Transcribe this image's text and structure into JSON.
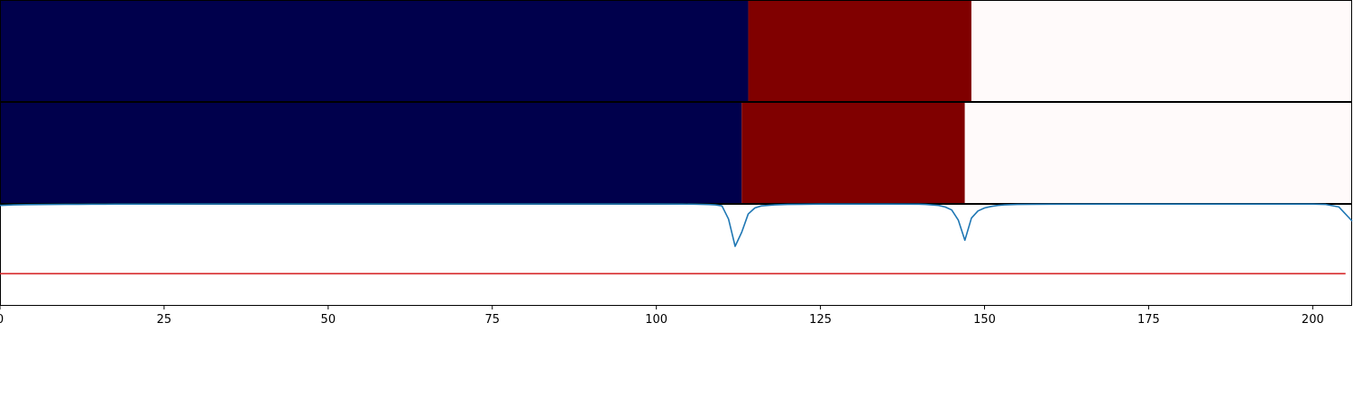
{
  "chart_data": {
    "type": "segmentation_and_line",
    "xlim": [
      0,
      206
    ],
    "x_ticks": [
      0,
      25,
      50,
      75,
      100,
      125,
      150,
      175,
      200
    ],
    "tick_labels": [
      "0",
      "25",
      "50",
      "75",
      "100",
      "125",
      "150",
      "175",
      "200"
    ],
    "segment_rows": [
      {
        "segments": [
          {
            "start": 0,
            "end": 114,
            "color": "#00004c"
          },
          {
            "start": 114,
            "end": 148,
            "color": "#800000"
          },
          {
            "start": 148,
            "end": 206,
            "color": "#fffafa"
          }
        ]
      },
      {
        "segments": [
          {
            "start": 0,
            "end": 113,
            "color": "#00004c"
          },
          {
            "start": 113,
            "end": 147,
            "color": "#800000"
          },
          {
            "start": 147,
            "end": 206,
            "color": "#fffafa"
          }
        ]
      }
    ],
    "line_panel": {
      "ylim": [
        0,
        1
      ],
      "threshold": {
        "value": 0.31,
        "color": "#d62728"
      },
      "series": [
        {
          "color": "#1f77b4",
          "x": [
            0,
            2,
            4,
            6,
            8,
            10,
            12,
            14,
            16,
            18,
            20,
            25,
            30,
            40,
            50,
            60,
            70,
            80,
            90,
            100,
            104,
            106,
            108,
            109,
            110,
            111,
            112,
            113,
            114,
            115,
            116,
            118,
            120,
            125,
            130,
            135,
            140,
            141,
            143,
            144,
            145,
            146,
            147,
            148,
            149,
            150,
            151,
            152,
            153,
            155,
            160,
            170,
            180,
            190,
            200,
            202,
            204,
            206
          ],
          "y": [
            0.985,
            0.99,
            0.993,
            0.994,
            0.995,
            0.996,
            0.996,
            0.997,
            0.997,
            0.998,
            0.998,
            0.998,
            0.999,
            0.999,
            0.999,
            0.999,
            0.999,
            0.999,
            0.999,
            0.999,
            0.998,
            0.997,
            0.994,
            0.99,
            0.98,
            0.85,
            0.58,
            0.72,
            0.9,
            0.96,
            0.98,
            0.99,
            0.995,
            0.998,
            0.998,
            0.998,
            0.997,
            0.995,
            0.985,
            0.97,
            0.94,
            0.84,
            0.64,
            0.86,
            0.93,
            0.96,
            0.975,
            0.985,
            0.99,
            0.995,
            0.997,
            0.998,
            0.998,
            0.998,
            0.998,
            0.995,
            0.97,
            0.83
          ]
        }
      ]
    }
  }
}
